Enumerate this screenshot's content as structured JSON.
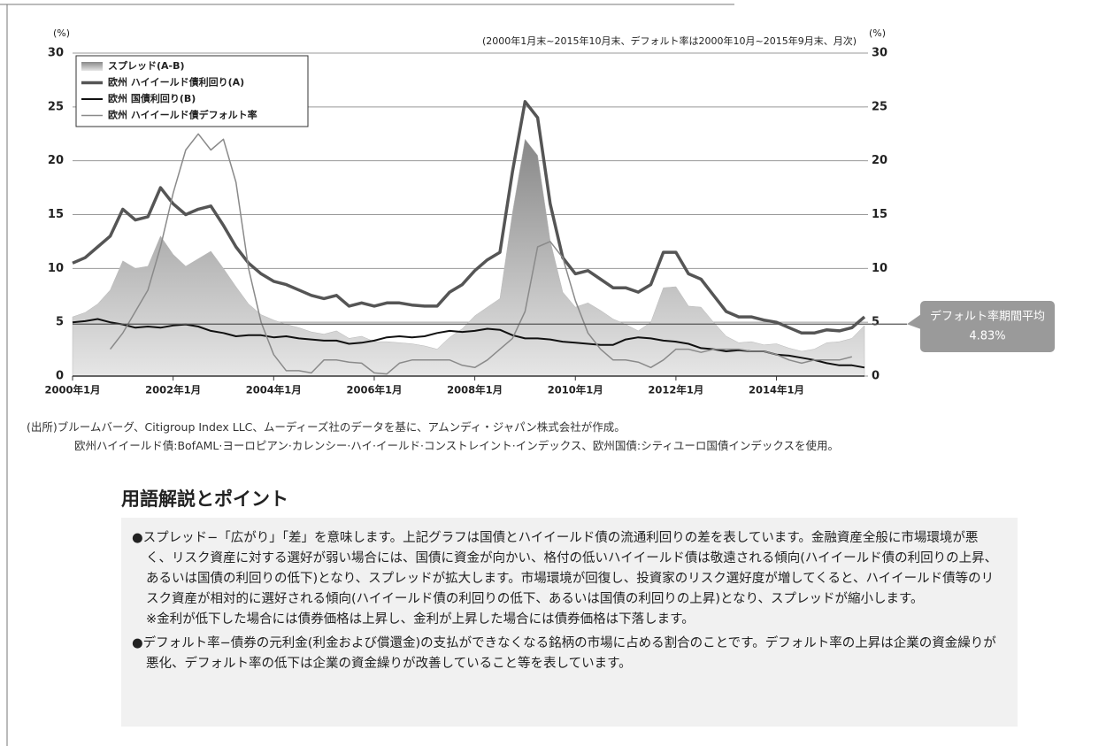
{
  "chart_data": {
    "type": "line",
    "subtitle": "(2000年1月末~2015年10月末、デフォルト率は2000年10月~2015年9月末、月次)",
    "ylabel": "(%)",
    "y2label": "(%)",
    "x": [
      "2000-01",
      "2000-04",
      "2000-07",
      "2000-10",
      "2001-01",
      "2001-04",
      "2001-07",
      "2001-10",
      "2002-01",
      "2002-04",
      "2002-07",
      "2002-10",
      "2003-01",
      "2003-04",
      "2003-07",
      "2003-10",
      "2004-01",
      "2004-04",
      "2004-07",
      "2004-10",
      "2005-01",
      "2005-04",
      "2005-07",
      "2005-10",
      "2006-01",
      "2006-04",
      "2006-07",
      "2006-10",
      "2007-01",
      "2007-04",
      "2007-07",
      "2007-10",
      "2008-01",
      "2008-04",
      "2008-07",
      "2008-10",
      "2009-01",
      "2009-04",
      "2009-07",
      "2009-10",
      "2010-01",
      "2010-04",
      "2010-07",
      "2010-10",
      "2011-01",
      "2011-04",
      "2011-07",
      "2011-10",
      "2012-01",
      "2012-04",
      "2012-07",
      "2012-10",
      "2013-01",
      "2013-04",
      "2013-07",
      "2013-10",
      "2014-01",
      "2014-04",
      "2014-07",
      "2014-10",
      "2015-01",
      "2015-04",
      "2015-07",
      "2015-10"
    ],
    "xlim": [
      "2000-01",
      "2015-10"
    ],
    "xticks": [
      {
        "value": "2000-01",
        "label": "2000年1月"
      },
      {
        "value": "2002-01",
        "label": "2002年1月"
      },
      {
        "value": "2004-01",
        "label": "2004年1月"
      },
      {
        "value": "2006-01",
        "label": "2006年1月"
      },
      {
        "value": "2008-01",
        "label": "2008年1月"
      },
      {
        "value": "2010-01",
        "label": "2010年1月"
      },
      {
        "value": "2012-01",
        "label": "2012年1月"
      },
      {
        "value": "2014-01",
        "label": "2014年1月"
      }
    ],
    "ylim": [
      0,
      30
    ],
    "yticks": [
      0,
      5,
      10,
      15,
      20,
      25,
      30
    ],
    "y2lim": [
      0,
      30
    ],
    "y2ticks": [
      0,
      5,
      10,
      15,
      20,
      25,
      30
    ],
    "grid": true,
    "legend": "upper left",
    "series": [
      {
        "name": "スプレッド(A-B)",
        "kind": "area",
        "color": "#b8b8b8",
        "values": [
          5.5,
          5.9,
          6.7,
          8,
          10.7,
          10,
          10.2,
          13,
          11.3,
          10.2,
          10.9,
          11.6,
          10,
          8.3,
          6.7,
          5.7,
          5.2,
          4.8,
          4.5,
          4.1,
          3.9,
          4.2,
          3.5,
          3.7,
          3.2,
          3.2,
          3.1,
          3,
          2.8,
          2.5,
          3.6,
          4.4,
          5.6,
          6.4,
          7.2,
          15.2,
          22,
          20.5,
          12.6,
          7.8,
          6.4,
          6.8,
          6.1,
          5.3,
          4.8,
          4.2,
          5,
          8.2,
          8.3,
          6.5,
          6.4,
          5,
          3.7,
          3.1,
          3.2,
          2.9,
          3,
          2.6,
          2.3,
          2.5,
          3.1,
          3.2,
          3.5,
          4.7
        ]
      },
      {
        "name": "欧州 ハイイールド債利回り(A)",
        "kind": "line",
        "color": "#555555",
        "width": 3.5,
        "values": [
          10.5,
          11,
          12,
          13,
          15.5,
          14.5,
          14.8,
          17.5,
          16,
          15,
          15.5,
          15.8,
          14,
          12,
          10.5,
          9.5,
          8.8,
          8.5,
          8,
          7.5,
          7.2,
          7.5,
          6.5,
          6.8,
          6.5,
          6.8,
          6.8,
          6.6,
          6.5,
          6.5,
          7.8,
          8.5,
          9.8,
          10.8,
          11.5,
          19,
          25.5,
          24,
          16,
          11,
          9.5,
          9.8,
          9,
          8.2,
          8.2,
          7.8,
          8.5,
          11.5,
          11.5,
          9.5,
          9,
          7.5,
          6,
          5.5,
          5.5,
          5.2,
          5,
          4.5,
          4,
          4,
          4.3,
          4.2,
          4.5,
          5.5
        ]
      },
      {
        "name": "欧州 国債利回り(B)",
        "kind": "line",
        "color": "#111111",
        "width": 2,
        "values": [
          5,
          5.1,
          5.3,
          5,
          4.8,
          4.5,
          4.6,
          4.5,
          4.7,
          4.8,
          4.6,
          4.2,
          4,
          3.7,
          3.8,
          3.8,
          3.6,
          3.7,
          3.5,
          3.4,
          3.3,
          3.3,
          3,
          3.1,
          3.3,
          3.6,
          3.7,
          3.6,
          3.7,
          4,
          4.2,
          4.1,
          4.2,
          4.4,
          4.3,
          3.8,
          3.5,
          3.5,
          3.4,
          3.2,
          3.1,
          3,
          2.9,
          2.9,
          3.4,
          3.6,
          3.5,
          3.3,
          3.2,
          3,
          2.6,
          2.5,
          2.3,
          2.4,
          2.3,
          2.3,
          2,
          1.9,
          1.7,
          1.5,
          1.2,
          1,
          1,
          0.8
        ]
      },
      {
        "name": "欧州 ハイイールド債デフォルト率",
        "kind": "line",
        "color": "#8a8a8a",
        "width": 1.5,
        "axis": "y2",
        "values": [
          null,
          null,
          null,
          2.5,
          4,
          6,
          8,
          12,
          17,
          21,
          22.5,
          21,
          22,
          18,
          10,
          5,
          2,
          0.5,
          0.5,
          0.3,
          1.5,
          1.5,
          1.3,
          1.2,
          0.3,
          0.2,
          1.2,
          1.5,
          1.5,
          1.5,
          1.5,
          1,
          0.8,
          1.5,
          2.5,
          3.5,
          6,
          12,
          12.5,
          11,
          7,
          4,
          2.5,
          1.5,
          1.5,
          1.3,
          0.8,
          1.5,
          2.5,
          2.5,
          2.2,
          2.5,
          2.5,
          2.5,
          2.3,
          2.3,
          2,
          1.5,
          1.2,
          1.5,
          1.5,
          1.5,
          1.8,
          null
        ]
      }
    ],
    "average": {
      "text": "デフォルト率期間平均",
      "value": 4.83,
      "label": "4.83%",
      "axis": "y2"
    }
  },
  "source": [
    "(出所)ブルームバーグ、Citigroup Index LLC、ムーディーズ社のデータを基に、アムンディ・ジャパン株式会社が作成。",
    "欧州ハイイールド債:BofAML·ヨーロピアン·カレンシー·ハイ·イールド·コンストレイント·インデックス、欧州国債:シティユーロ国債インデックスを使用。"
  ],
  "glossary": {
    "title": "用語解説とポイント",
    "items": [
      {
        "text": "●スプレッド−「広がり」「差」を意味します。上記グラフは国債とハイイールド債の流通利回りの差を表しています。金融資産全般に市場環境が悪く、リスク資産に対する選好が弱い場合には、国債に資金が向かい、格付の低いハイイールド債は敬遠される傾向(ハイイールド債の利回りの上昇、あるいは国債の利回りの低下)となり、スプレッドが拡大します。市場環境が回復し、投資家のリスク選好度が増してくると、ハイイールド債等のリスク資産が相対的に選好される傾向(ハイイールド債の利回りの低下、あるいは国債の利回りの上昇)となり、スプレッドが縮小します。",
        "note": "※金利が低下した場合には債券価格は上昇し、金利が上昇した場合には債券価格は下落します。"
      },
      {
        "text": "●デフォルト率−債券の元利金(利金および償還金)の支払ができなくなる銘柄の市場に占める割合のことです。デフォルト率の上昇は企業の資金繰りが悪化、デフォルト率の低下は企業の資金繰りが改善していること等を表しています。"
      }
    ]
  }
}
